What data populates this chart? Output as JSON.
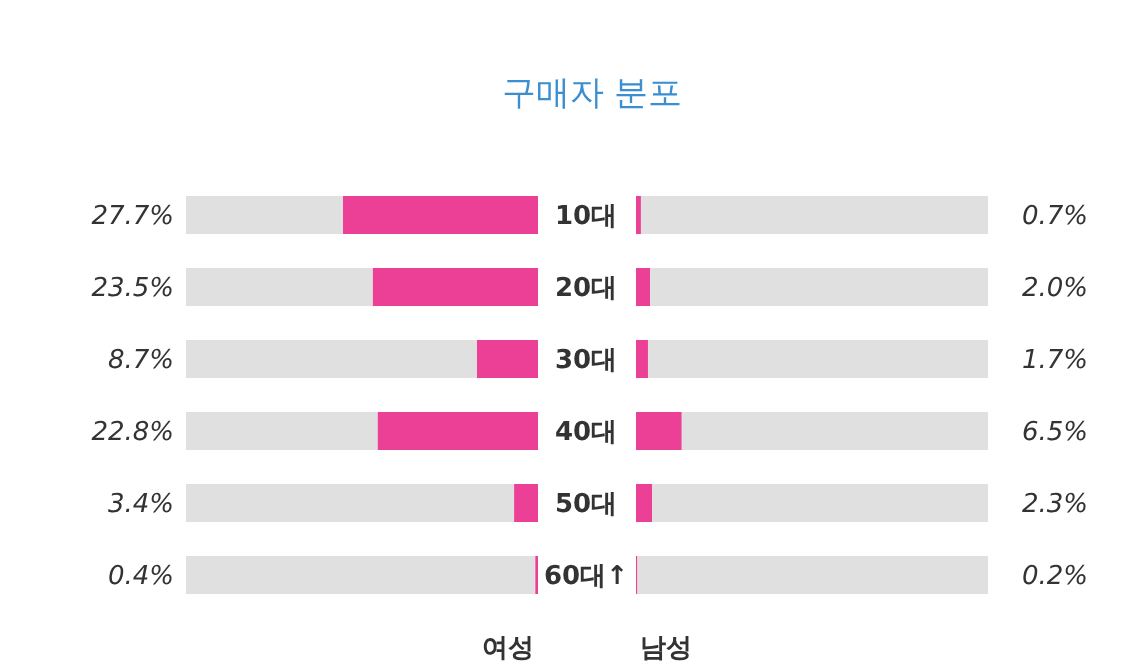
{
  "chart_data": [
    {
      "type": "bar",
      "orientation": "horizontal",
      "stacked": true,
      "title": "구매자 분포",
      "xlabel": "여성",
      "categories": [
        "10대",
        "20대",
        "30대",
        "40대",
        "50대",
        "60대↑"
      ],
      "xlim": [
        50,
        0
      ],
      "tick_labels": "y",
      "series": [
        {
          "color": "#ec3f96",
          "values": [
            27.7,
            23.5,
            8.7,
            22.8,
            3.4,
            0.4
          ],
          "value_labels": [
            "27.7%",
            "23.5%",
            "8.7%",
            "22.8%",
            "3.4%",
            "0.4%"
          ]
        },
        {
          "color": "#e0e0e0",
          "values": [
            22.3,
            26.5,
            41.3,
            27.2,
            46.6,
            49.6
          ]
        }
      ]
    },
    {
      "type": "bar",
      "orientation": "horizontal",
      "stacked": true,
      "xlabel": "남성",
      "categories": [
        null,
        null,
        null,
        null,
        null,
        null
      ],
      "xlim": [
        0,
        50
      ],
      "tick_labels": false,
      "series": [
        {
          "color": "#ec3f96",
          "values": [
            0.7,
            2.0,
            1.7,
            6.5,
            2.3,
            0.2
          ],
          "value_labels": [
            "0.7%",
            "2.0%",
            "1.7%",
            "6.5%",
            "2.3%",
            "0.2%"
          ]
        },
        {
          "color": "#e0e0e0",
          "values": [
            49.3,
            48.0,
            48.3,
            43.5,
            47.7,
            49.8
          ]
        }
      ]
    }
  ]
}
